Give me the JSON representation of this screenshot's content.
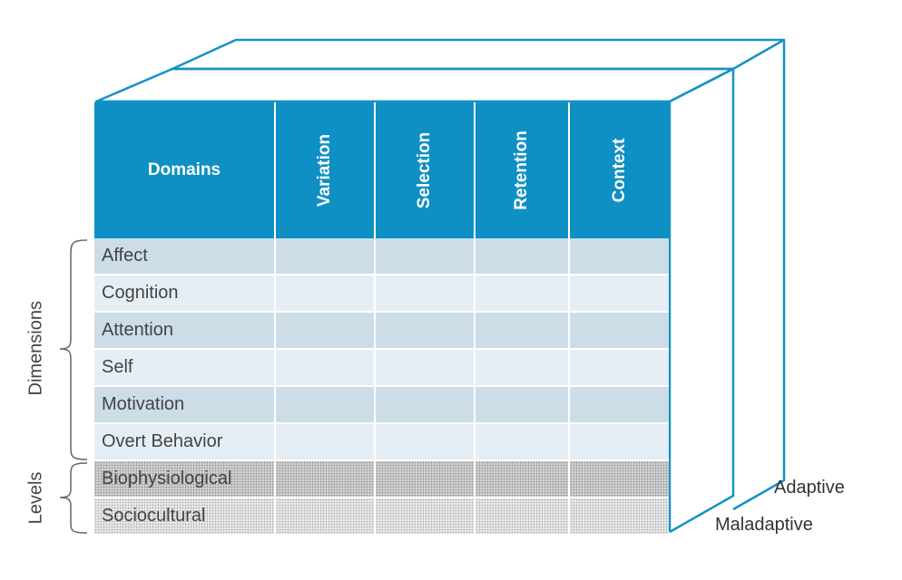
{
  "header": {
    "domains_label": "Domains",
    "columns": [
      "Variation",
      "Selection",
      "Retention",
      "Context"
    ]
  },
  "rows": [
    {
      "label": "Affect",
      "group": "dimension"
    },
    {
      "label": "Cognition",
      "group": "dimension"
    },
    {
      "label": "Attention",
      "group": "dimension"
    },
    {
      "label": "Self",
      "group": "dimension"
    },
    {
      "label": "Motivation",
      "group": "dimension"
    },
    {
      "label": "Overt Behavior",
      "group": "dimension"
    },
    {
      "label": "Biophysiological",
      "group": "level"
    },
    {
      "label": "Sociocultural",
      "group": "level"
    }
  ],
  "side_labels": {
    "dimensions": "Dimensions",
    "levels": "Levels"
  },
  "depth_labels": {
    "front": "Maladaptive",
    "back": "Adaptive"
  },
  "colors": {
    "header": "#0e90c4",
    "outline": "#1592c4",
    "row_dark": "#ccdde8",
    "row_light": "#e6eef5",
    "text": "#444444"
  }
}
